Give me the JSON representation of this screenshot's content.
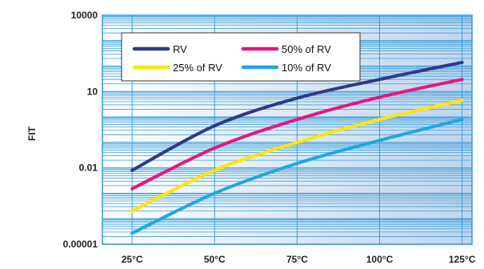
{
  "chart_data": {
    "type": "line",
    "title": "",
    "xlabel": "",
    "ylabel": "FIT",
    "y_scale": "log",
    "ylim": [
      1e-05,
      10000
    ],
    "xlim": [
      16,
      128
    ],
    "x_ticks": [
      25,
      50,
      75,
      100,
      125
    ],
    "x_tick_labels": [
      "25°C",
      "50°C",
      "75°C",
      "100°C",
      "125°C"
    ],
    "y_ticks": [
      1e-05,
      0.01,
      10,
      10000
    ],
    "y_tick_labels": [
      "0.00001",
      "0.01",
      "10",
      "10000"
    ],
    "grid": true,
    "legend_position": "top-left",
    "x": [
      25,
      50,
      75,
      100,
      125
    ],
    "series": [
      {
        "name": "RV",
        "color": "#2e3a87",
        "values": [
          0.008,
          0.45,
          5.5,
          30,
          140
        ]
      },
      {
        "name": "50% of RV",
        "color": "#e5177e",
        "values": [
          0.0015,
          0.06,
          0.8,
          6,
          30
        ]
      },
      {
        "name": "25% of RV",
        "color": "#ffe600",
        "values": [
          0.0002,
          0.008,
          0.1,
          0.8,
          4.5
        ]
      },
      {
        "name": "10% of RV",
        "color": "#1ea7e1",
        "values": [
          2.7e-05,
          0.001,
          0.015,
          0.12,
          0.8
        ]
      }
    ]
  }
}
